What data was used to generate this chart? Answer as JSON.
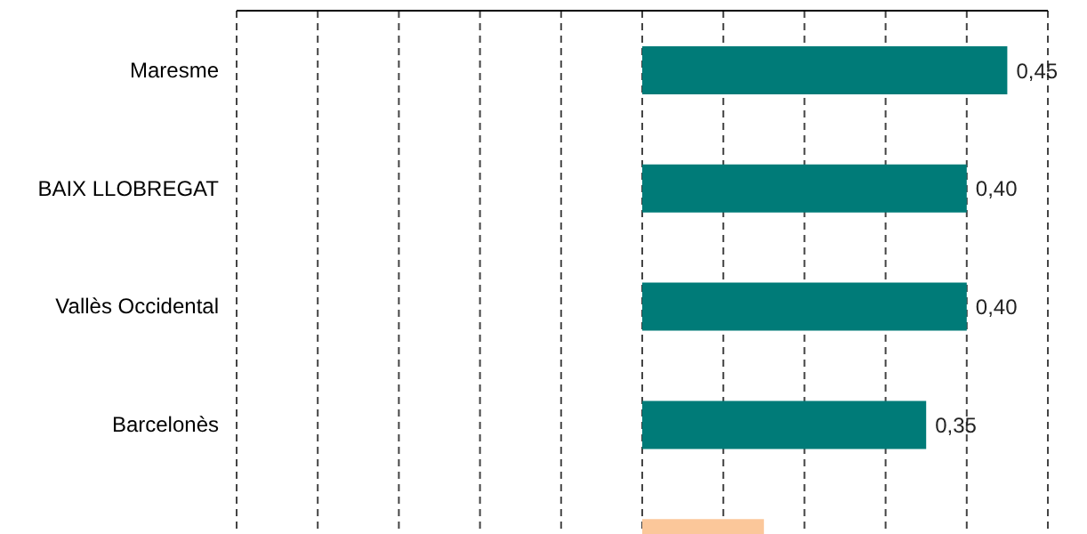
{
  "chart_data": {
    "type": "bar",
    "orientation": "horizontal",
    "categories": [
      "Maresme",
      "BAIX LLOBREGAT",
      "Vallès Occidental",
      "Barcelonès",
      null
    ],
    "values": [
      0.45,
      0.4,
      0.4,
      0.35,
      0.15
    ],
    "colors": [
      "#007b78",
      "#007b78",
      "#007b78",
      "#007b78",
      "#fbc79a"
    ],
    "value_labels": [
      "0,45",
      "0,40",
      "0,40",
      "0,35",
      null
    ],
    "xlim": [
      -0.5,
      0.5
    ],
    "xticks": [
      {
        "value": -0.5,
        "label": null
      },
      {
        "value": -0.4,
        "label": null
      },
      {
        "value": -0.3,
        "label": null
      },
      {
        "value": -0.2,
        "label": null
      },
      {
        "value": -0.1,
        "label": null
      },
      {
        "value": 0,
        "label": null
      },
      {
        "value": 0.1,
        "label": null
      },
      {
        "value": 0.2,
        "label": null
      },
      {
        "value": 0.3,
        "label": null
      },
      {
        "value": 0.4,
        "label": null
      },
      {
        "value": 0.5,
        "label": null
      }
    ],
    "grid": "x",
    "tick_labels": "y"
  }
}
